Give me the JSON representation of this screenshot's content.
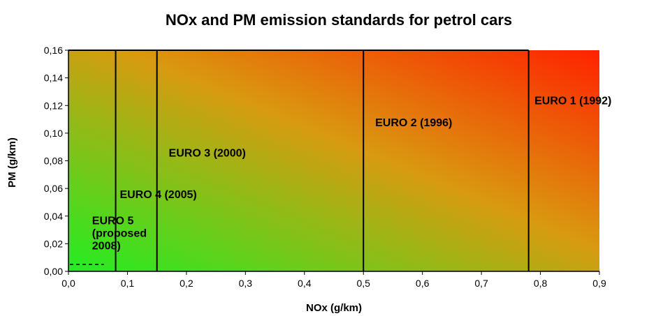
{
  "chart_data": {
    "type": "area",
    "title": "NOx and PM emission standards for petrol cars",
    "xlabel": "NOx (g/km)",
    "ylabel": "PM (g/km)",
    "xlim": [
      0,
      0.9
    ],
    "ylim": [
      0,
      0.16
    ],
    "x_ticks": [
      "0,0",
      "0,1",
      "0,2",
      "0,3",
      "0,4",
      "0,5",
      "0,6",
      "0,7",
      "0,8",
      "0,9"
    ],
    "x_tick_values": [
      0,
      0.1,
      0.2,
      0.3,
      0.4,
      0.5,
      0.6,
      0.7,
      0.8,
      0.9
    ],
    "y_ticks": [
      "0,00",
      "0,02",
      "0,04",
      "0,06",
      "0,08",
      "0,10",
      "0,12",
      "0,14",
      "0,16"
    ],
    "y_tick_values": [
      0,
      0.02,
      0.04,
      0.06,
      0.08,
      0.1,
      0.12,
      0.14,
      0.16
    ],
    "grid": false,
    "background_gradient": {
      "low_corner_color": "#22ee22",
      "high_corner_color": "#ff2200"
    },
    "limit_lines": [
      {
        "x": 0.08,
        "y_max": 0.16
      },
      {
        "x": 0.15,
        "y_max": 0.16
      },
      {
        "x": 0.5,
        "y_max": 0.16
      },
      {
        "x": 0.78,
        "y_max": 0.16
      }
    ],
    "dashed_limit": {
      "nox": 0.06,
      "pm": 0.005
    },
    "region_labels": [
      {
        "text_lines": [
          "EURO 1 (1992)"
        ],
        "x": 0.79,
        "y": 0.121
      },
      {
        "text_lines": [
          "EURO 2 (1996)"
        ],
        "x": 0.52,
        "y": 0.105
      },
      {
        "text_lines": [
          "EURO 3 (2000)"
        ],
        "x": 0.17,
        "y": 0.083
      },
      {
        "text_lines": [
          "EURO 4 (2005)"
        ],
        "x": 0.087,
        "y": 0.053
      },
      {
        "text_lines": [
          "EURO 5",
          "(proposed",
          "2008)"
        ],
        "x": 0.04,
        "y": 0.034
      }
    ]
  }
}
